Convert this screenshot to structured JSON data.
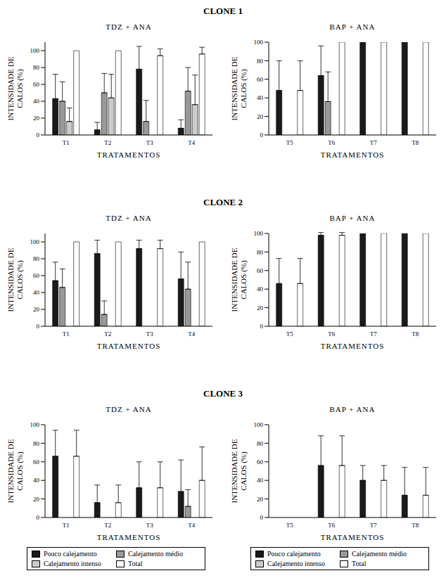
{
  "chart_data": [
    {
      "type": "bar",
      "supertitle": "CLONE 1",
      "title": "TDZ + ANA",
      "x_label": "TRATAMENTOS",
      "y_label": "INTENSIDADE DE CALOS (%)",
      "categories": [
        "T1",
        "T2",
        "T3",
        "T4"
      ],
      "ylim": [
        0,
        110
      ],
      "yticks": [
        0,
        20,
        40,
        60,
        80,
        100
      ],
      "grid": false,
      "series": [
        {
          "name": "Pouco calejamento",
          "color": "#1a1a1a",
          "values": [
            43,
            6,
            78,
            8
          ],
          "errors": [
            29,
            9,
            27,
            10
          ]
        },
        {
          "name": "Calejamento médio",
          "color": "#999999",
          "values": [
            40,
            50,
            16,
            52
          ],
          "errors": [
            23,
            23,
            25,
            28
          ]
        },
        {
          "name": "Calejamento intenso",
          "color": "#cccccc",
          "values": [
            16,
            44,
            0,
            36
          ],
          "errors": [
            16,
            28,
            null,
            35
          ]
        },
        {
          "name": "Total",
          "color": "#ffffff",
          "values": [
            100,
            100,
            94,
            96
          ],
          "errors": [
            null,
            null,
            8,
            8
          ]
        }
      ]
    },
    {
      "type": "bar",
      "supertitle": "CLONE 1",
      "title": "BAP + ANA",
      "x_label": "TRATAMENTOS",
      "y_label": "INTENSIDADE DE CALOS (%)",
      "categories": [
        "T5",
        "T6",
        "T7",
        "T8"
      ],
      "ylim": [
        0,
        100
      ],
      "yticks": [
        0,
        20,
        40,
        60,
        80,
        100
      ],
      "grid": false,
      "series": [
        {
          "name": "Pouco calejamento",
          "color": "#1a1a1a",
          "values": [
            48,
            64,
            100,
            100
          ],
          "errors": [
            32,
            32,
            null,
            null
          ]
        },
        {
          "name": "Calejamento médio",
          "color": "#999999",
          "values": [
            0,
            36,
            0,
            0
          ],
          "errors": [
            null,
            32,
            null,
            null
          ]
        },
        {
          "name": "Calejamento intenso",
          "color": "#cccccc",
          "values": [
            0,
            0,
            0,
            0
          ],
          "errors": [
            null,
            null,
            null,
            null
          ]
        },
        {
          "name": "Total",
          "color": "#ffffff",
          "values": [
            48,
            100,
            100,
            100
          ],
          "errors": [
            32,
            null,
            null,
            null
          ]
        }
      ]
    },
    {
      "type": "bar",
      "supertitle": "CLONE 2",
      "title": "TDZ + ANA",
      "x_label": "TRATAMENTOS",
      "y_label": "INTENSIDADE DE CALOS (%)",
      "categories": [
        "T1",
        "T2",
        "T3",
        "T4"
      ],
      "ylim": [
        0,
        110
      ],
      "yticks": [
        0,
        20,
        40,
        60,
        80,
        100
      ],
      "grid": false,
      "series": [
        {
          "name": "Pouco calejamento",
          "color": "#1a1a1a",
          "values": [
            54,
            86,
            92,
            56
          ],
          "errors": [
            22,
            16,
            10,
            32
          ]
        },
        {
          "name": "Calejamento médio",
          "color": "#999999",
          "values": [
            46,
            14,
            0,
            44
          ],
          "errors": [
            22,
            16,
            null,
            32
          ]
        },
        {
          "name": "Calejamento intenso",
          "color": "#cccccc",
          "values": [
            0,
            0,
            0,
            0
          ],
          "errors": [
            null,
            null,
            null,
            null
          ]
        },
        {
          "name": "Total",
          "color": "#ffffff",
          "values": [
            100,
            100,
            92,
            100
          ],
          "errors": [
            null,
            null,
            10,
            null
          ]
        }
      ]
    },
    {
      "type": "bar",
      "supertitle": "CLONE 2",
      "title": "BAP + ANA",
      "x_label": "TRATAMENTOS",
      "y_label": "INTENSIDADE DE CALOS (%)",
      "categories": [
        "T5",
        "T6",
        "T7",
        "T8"
      ],
      "ylim": [
        0,
        100
      ],
      "yticks": [
        0,
        20,
        40,
        60,
        80,
        100
      ],
      "grid": false,
      "series": [
        {
          "name": "Pouco calejamento",
          "color": "#1a1a1a",
          "values": [
            46,
            98,
            100,
            100
          ],
          "errors": [
            27,
            3,
            null,
            null
          ]
        },
        {
          "name": "Calejamento médio",
          "color": "#999999",
          "values": [
            0,
            0,
            0,
            0
          ],
          "errors": [
            null,
            null,
            null,
            null
          ]
        },
        {
          "name": "Calejamento intenso",
          "color": "#cccccc",
          "values": [
            0,
            0,
            0,
            0
          ],
          "errors": [
            null,
            null,
            null,
            null
          ]
        },
        {
          "name": "Total",
          "color": "#ffffff",
          "values": [
            46,
            98,
            100,
            100
          ],
          "errors": [
            27,
            3,
            null,
            null
          ]
        }
      ]
    },
    {
      "type": "bar",
      "supertitle": "CLONE 3",
      "title": "TDZ + ANA",
      "x_label": "TRATAMENTOS",
      "y_label": "INTENSIDADE DE CALOS (%)",
      "categories": [
        "T1",
        "T2",
        "T3",
        "T4"
      ],
      "ylim": [
        0,
        100
      ],
      "yticks": [
        0,
        20,
        40,
        60,
        80,
        100
      ],
      "grid": false,
      "legend": "bottom",
      "series": [
        {
          "name": "Pouco calejamento",
          "color": "#1a1a1a",
          "values": [
            66,
            16,
            32,
            28
          ],
          "errors": [
            28,
            19,
            28,
            34
          ]
        },
        {
          "name": "Calejamento médio",
          "color": "#999999",
          "values": [
            0,
            0,
            0,
            12
          ],
          "errors": [
            null,
            null,
            null,
            18
          ]
        },
        {
          "name": "Calejamento intenso",
          "color": "#cccccc",
          "values": [
            0,
            0,
            0,
            0
          ],
          "errors": [
            null,
            null,
            null,
            null
          ]
        },
        {
          "name": "Total",
          "color": "#ffffff",
          "values": [
            66,
            16,
            32,
            40
          ],
          "errors": [
            28,
            19,
            28,
            36
          ]
        }
      ]
    },
    {
      "type": "bar",
      "supertitle": "CLONE 3",
      "title": "BAP + ANA",
      "x_label": "TRATAMENTOS",
      "y_label": "INTENSIDADE DE CALOS (%)",
      "categories": [
        "T5",
        "T6",
        "T7",
        "T8"
      ],
      "ylim": [
        0,
        100
      ],
      "yticks": [
        0,
        20,
        40,
        60,
        80,
        100
      ],
      "grid": false,
      "legend": "bottom",
      "series": [
        {
          "name": "Pouco calejamento",
          "color": "#1a1a1a",
          "values": [
            0,
            56,
            40,
            24
          ],
          "errors": [
            null,
            32,
            16,
            30
          ]
        },
        {
          "name": "Calejamento médio",
          "color": "#999999",
          "values": [
            0,
            0,
            0,
            0
          ],
          "errors": [
            null,
            null,
            null,
            null
          ]
        },
        {
          "name": "Calejamento intenso",
          "color": "#cccccc",
          "values": [
            0,
            0,
            0,
            0
          ],
          "errors": [
            null,
            null,
            null,
            null
          ]
        },
        {
          "name": "Total",
          "color": "#ffffff",
          "values": [
            0,
            56,
            40,
            24
          ],
          "errors": [
            null,
            32,
            16,
            30
          ]
        }
      ]
    }
  ]
}
